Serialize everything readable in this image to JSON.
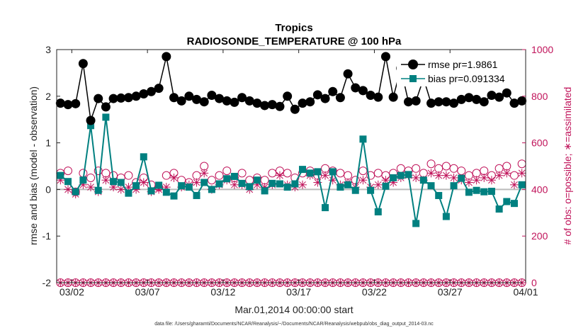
{
  "chart_data": {
    "type": "line",
    "title": "Tropics",
    "subtitle": "RADIOSONDE_TEMPERATURE @ 100 hPa",
    "xlabel": "Mar.01,2014 00:00:00 start",
    "ylabel": "rmse and bias (model - observation)",
    "y2label": "# of obs: o=possible; ∗=assimilated",
    "xlim": [
      0,
      31
    ],
    "ylim": [
      -2,
      3
    ],
    "y2lim": [
      0,
      1000
    ],
    "x_tick_values": [
      1,
      6,
      11,
      16,
      21,
      26,
      31
    ],
    "x_tick_labels": [
      "03/02",
      "03/07",
      "03/12",
      "03/17",
      "03/22",
      "03/27",
      "04/01"
    ],
    "y_ticks": [
      -2,
      -1,
      0,
      1,
      2,
      3
    ],
    "y2_ticks": [
      0,
      200,
      400,
      600,
      800,
      1000
    ],
    "legend": {
      "position": "top-right",
      "entries": [
        "rmse pr=1.9861",
        "bias pr=0.091334"
      ]
    },
    "footnote": "data file: /Users/gharamti/Documents/NCAR/Reanalysis/~/Documents/NCAR/Reanalysis/webpub/obs_diag_output_2014-03.nc",
    "colors": {
      "rmse": "#000000",
      "bias": "#008080",
      "obs": "#c0135a",
      "zero_line": "#bbbbbb"
    },
    "x": [
      0.25,
      0.75,
      1.25,
      1.75,
      2.25,
      2.75,
      3.25,
      3.75,
      4.25,
      4.75,
      5.25,
      5.75,
      6.25,
      6.75,
      7.25,
      7.75,
      8.25,
      8.75,
      9.25,
      9.75,
      10.25,
      10.75,
      11.25,
      11.75,
      12.25,
      12.75,
      13.25,
      13.75,
      14.25,
      14.75,
      15.25,
      15.75,
      16.25,
      16.75,
      17.25,
      17.75,
      18.25,
      18.75,
      19.25,
      19.75,
      20.25,
      20.75,
      21.25,
      21.75,
      22.25,
      22.75,
      23.25,
      23.75,
      24.25,
      24.75,
      25.25,
      25.75,
      26.25,
      26.75,
      27.25,
      27.75,
      28.25,
      28.75,
      29.25,
      29.75,
      30.25,
      30.75
    ],
    "series": [
      {
        "name": "rmse pr=1.9861",
        "marker": "circle",
        "values": [
          1.85,
          1.82,
          1.84,
          2.7,
          1.48,
          1.95,
          1.77,
          1.95,
          1.96,
          1.97,
          2.0,
          2.05,
          2.1,
          2.17,
          2.85,
          1.97,
          1.9,
          2.0,
          1.93,
          1.88,
          2.02,
          1.95,
          1.9,
          1.87,
          1.97,
          1.9,
          1.85,
          1.8,
          1.82,
          1.78,
          2.0,
          1.72,
          1.85,
          1.88,
          2.03,
          1.95,
          2.1,
          1.97,
          2.48,
          2.18,
          2.12,
          2.02,
          1.98,
          2.85,
          1.98,
          2.6,
          1.88,
          1.9,
          2.38,
          1.85,
          1.88,
          1.88,
          1.85,
          1.93,
          1.97,
          1.93,
          1.88,
          2.02,
          1.98,
          2.07,
          1.85,
          1.9
        ]
      },
      {
        "name": "bias pr=0.091334",
        "marker": "square",
        "values": [
          0.3,
          0.17,
          -0.05,
          0.2,
          1.37,
          -0.02,
          1.55,
          0.17,
          0.15,
          -0.08,
          0.08,
          0.7,
          -0.03,
          0.09,
          -0.06,
          -0.14,
          0.08,
          0.05,
          -0.13,
          0.15,
          0.0,
          0.12,
          0.23,
          0.28,
          0.13,
          0.06,
          0.2,
          -0.03,
          0.13,
          0.12,
          0.05,
          0.12,
          0.43,
          0.35,
          0.38,
          -0.39,
          0.38,
          0.05,
          0.1,
          -0.02,
          1.08,
          -0.02,
          -0.48,
          0.07,
          0.25,
          0.3,
          0.32,
          -0.73,
          0.2,
          0.08,
          -0.13,
          -0.58,
          0.08,
          0.24,
          -0.06,
          -0.02,
          -0.05,
          -0.04,
          -0.42,
          -0.26,
          -0.3,
          0.1
        ]
      },
      {
        "name": "possible",
        "axis": "right",
        "marker": "open-circle",
        "values": [
          470,
          480,
          390,
          470,
          450,
          480,
          470,
          460,
          450,
          460,
          430,
          450,
          420,
          410,
          460,
          470,
          440,
          430,
          460,
          500,
          440,
          460,
          480,
          450,
          470,
          440,
          450,
          440,
          470,
          480,
          470,
          450,
          470,
          480,
          460,
          490,
          480,
          470,
          460,
          440,
          480,
          460,
          470,
          460,
          470,
          490,
          480,
          490,
          470,
          510,
          490,
          500,
          490,
          480,
          460,
          470,
          480,
          460,
          490,
          500,
          460,
          510
        ]
      },
      {
        "name": "assimilated",
        "axis": "right",
        "marker": "asterisk",
        "values": [
          440,
          400,
          380,
          420,
          410,
          390,
          440,
          410,
          400,
          410,
          400,
          430,
          390,
          400,
          410,
          450,
          410,
          420,
          430,
          470,
          400,
          420,
          440,
          420,
          420,
          400,
          420,
          410,
          420,
          460,
          420,
          410,
          420,
          460,
          430,
          460,
          440,
          420,
          430,
          410,
          440,
          410,
          420,
          440,
          430,
          450,
          460,
          450,
          440,
          470,
          460,
          460,
          450,
          440,
          430,
          440,
          450,
          440,
          460,
          470,
          420,
          470
        ]
      },
      {
        "name": "possible-used-zero",
        "axis": "right",
        "marker": "open-circle",
        "values": [
          0,
          0,
          0,
          0,
          0,
          0,
          0,
          0,
          0,
          0,
          0,
          0,
          0,
          0,
          0,
          0,
          0,
          0,
          0,
          0,
          0,
          0,
          0,
          0,
          0,
          0,
          0,
          0,
          0,
          0,
          0,
          0,
          0,
          0,
          0,
          0,
          0,
          0,
          0,
          0,
          0,
          0,
          0,
          0,
          0,
          0,
          0,
          0,
          0,
          0,
          0,
          0,
          0,
          0,
          0,
          0,
          0,
          0,
          0,
          0,
          0,
          0
        ]
      }
    ]
  }
}
